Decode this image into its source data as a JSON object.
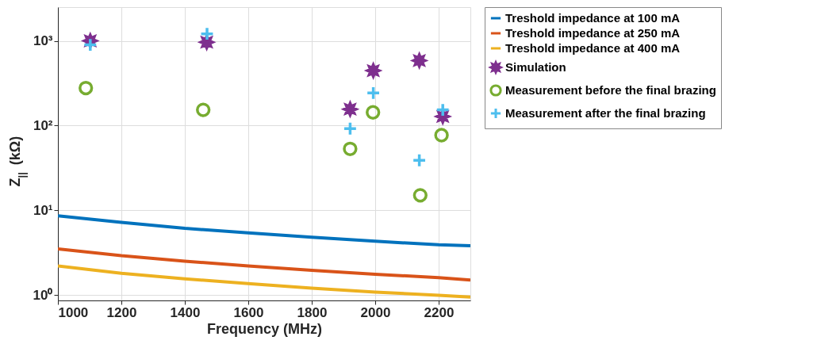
{
  "chart_data": {
    "type": "line",
    "xlabel": "Frequency (MHz)",
    "ylabel": "Z$_{||}$ (kΩ)",
    "log": "y",
    "grid": true,
    "legend": "top right",
    "xlim": [
      1000,
      2300
    ],
    "xticks": [
      1000,
      1200,
      1400,
      1600,
      1800,
      2000,
      2200
    ],
    "ylim": [
      0.86,
      2500
    ],
    "yticks": [
      {
        "value": 1,
        "label": "10⁰"
      },
      {
        "value": 10,
        "label": "10¹"
      },
      {
        "value": 100,
        "label": "10²"
      },
      {
        "value": 1000,
        "label": "10³"
      }
    ],
    "series": [
      {
        "name": "Treshold impedance at 100 mA",
        "marker": "none",
        "color": "#0072bd",
        "x": [
          1000,
          1200,
          1400,
          1600,
          1800,
          2000,
          2200,
          2300
        ],
        "values": [
          8.6,
          7.2,
          6.1,
          5.4,
          4.8,
          4.3,
          3.9,
          3.8
        ]
      },
      {
        "name": "Treshold impedance at 250 mA",
        "marker": "none",
        "color": "#d95319",
        "x": [
          1000,
          1200,
          1400,
          1600,
          1800,
          2000,
          2200,
          2300
        ],
        "values": [
          3.5,
          2.9,
          2.5,
          2.2,
          1.95,
          1.75,
          1.6,
          1.5
        ]
      },
      {
        "name": "Treshold impedance at 400 mA",
        "marker": "none",
        "color": "#edb120",
        "x": [
          1000,
          1200,
          1400,
          1600,
          1800,
          2000,
          2200,
          2300
        ],
        "values": [
          2.2,
          1.8,
          1.55,
          1.36,
          1.2,
          1.08,
          0.99,
          0.94
        ]
      },
      {
        "name": "Simulation",
        "type": "scatter",
        "marker": "star",
        "color": "#7e2f8e",
        "x": [
          1102,
          1469,
          1921,
          1994,
          2139,
          2213
        ],
        "values": [
          1000,
          964,
          156,
          445,
          585,
          128
        ]
      },
      {
        "name": "Measurement before the final brazing",
        "type": "scatter",
        "marker": "circle",
        "color": "#77ac30",
        "x": [
          1088,
          1458,
          1921,
          1993,
          2142,
          2209
        ],
        "values": [
          277,
          153,
          53,
          143,
          15,
          77
        ]
      },
      {
        "name": "Measurement after the final brazing",
        "type": "scatter",
        "marker": "cross",
        "color": "#4dbeee",
        "x": [
          1102,
          1470,
          1921,
          1994,
          2139,
          2213
        ],
        "values": [
          897,
          1210,
          92,
          242,
          38.8,
          153
        ]
      }
    ]
  }
}
